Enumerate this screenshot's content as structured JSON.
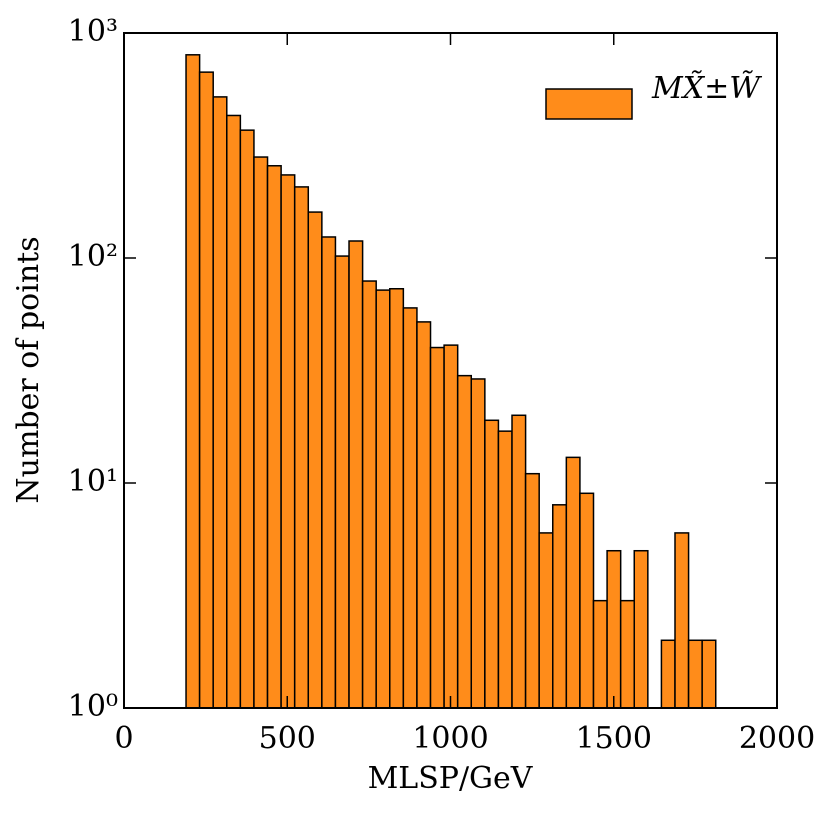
{
  "chart_data": {
    "type": "histogram",
    "xlabel": "MLSP/GeV",
    "ylabel": "Number of points",
    "bins": [
      190,
      231.6,
      273.2,
      314.8,
      356.4,
      398,
      439.6,
      481.2,
      522.8,
      564.4,
      606,
      647.6,
      689.2,
      730.8,
      772.4,
      814,
      855.6,
      897.2,
      938.8,
      980.4,
      1022,
      1063.6,
      1105.2,
      1146.8,
      1188.4,
      1230,
      1271.6,
      1313.2,
      1354.8,
      1396.4,
      1438,
      1479.6,
      1521.2,
      1562.8,
      1604.4,
      1646,
      1687.6,
      1729.2,
      1770.8,
      1812.4
    ],
    "series": [
      {
        "name": "MX̃±W̃",
        "color": "#ff8c1a",
        "values": [
          800,
          670,
          520,
          430,
          370,
          281,
          257,
          234,
          207,
          160,
          124,
          102,
          119,
          79,
          72,
          73,
          60,
          52,
          40,
          41,
          30,
          29,
          19,
          17,
          20,
          11,
          6,
          8,
          13,
          9,
          3,
          5,
          3,
          5,
          0,
          2,
          6,
          2,
          2
        ]
      }
    ],
    "xlim": [
      0,
      2000
    ],
    "xticks": [
      0,
      500,
      1000,
      1500,
      2000
    ],
    "ylim": [
      1,
      1000
    ],
    "yscale": "log",
    "yticks": [
      {
        "value": 1,
        "label": "10⁰"
      },
      {
        "value": 10,
        "label": "10¹"
      },
      {
        "value": 100,
        "label": "10²"
      },
      {
        "value": 1000,
        "label": "10³"
      }
    ],
    "legend": "upper right"
  }
}
